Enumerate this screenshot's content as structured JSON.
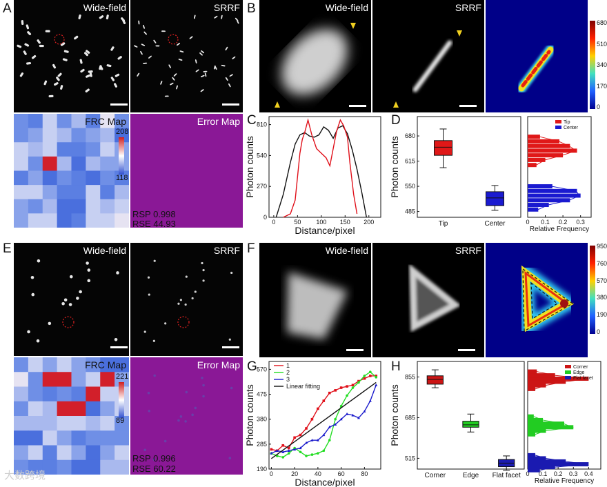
{
  "panel_letters": {
    "A": "A",
    "B": "B",
    "C": "C",
    "D": "D",
    "E": "E",
    "F": "F",
    "G": "G",
    "H": "H"
  },
  "titles": {
    "widefield": "Wide-field",
    "srrf": "SRRF",
    "frc": "FRC Map",
    "error": "Error Map"
  },
  "panelA": {
    "frc_max": "208",
    "frc_min": "118",
    "rsp": "RSP 0.998",
    "rse": "RSE 44.93"
  },
  "panelE": {
    "frc_max": "221",
    "frc_min": "89",
    "rsp": "RSP 0.996",
    "rse": "RSE 60.22"
  },
  "colorbar_B": [
    "680",
    "510",
    "340",
    "170",
    "0"
  ],
  "colorbar_F": [
    "950",
    "760",
    "570",
    "380",
    "190",
    "0"
  ],
  "watermark": "大数跨境",
  "colors": {
    "red": "#e0101a",
    "black": "#111111",
    "green": "#22dd22",
    "blue": "#1a1acc",
    "tip": "#e01818",
    "center": "#1a1ad0",
    "corner": "#cc1515",
    "edge": "#22cc22",
    "flat": "#1a1ab0"
  },
  "chart_data": [
    {
      "id": "C",
      "type": "line",
      "xlabel": "Distance/pixel",
      "ylabel": "Photon counts",
      "xlim": [
        -10,
        225
      ],
      "ylim": [
        0,
        880
      ],
      "xticks": [
        0,
        50,
        100,
        150,
        200
      ],
      "yticks": [
        0,
        270,
        540,
        810
      ],
      "series": [
        {
          "name": "Wide-field",
          "color": "#111111",
          "x": [
            5,
            20,
            35,
            45,
            55,
            65,
            75,
            85,
            95,
            105,
            115,
            125,
            135,
            145,
            155,
            165,
            175,
            185,
            195
          ],
          "y": [
            0,
            200,
            480,
            640,
            720,
            740,
            710,
            700,
            720,
            790,
            760,
            690,
            780,
            800,
            730,
            590,
            420,
            220,
            0
          ]
        },
        {
          "name": "SRRF",
          "color": "#e0101a",
          "x": [
            20,
            35,
            45,
            55,
            60,
            65,
            72,
            80,
            90,
            100,
            110,
            118,
            125,
            132,
            140,
            147,
            155,
            160,
            168,
            175
          ],
          "y": [
            0,
            30,
            150,
            560,
            680,
            740,
            850,
            720,
            600,
            560,
            520,
            450,
            600,
            750,
            850,
            800,
            700,
            480,
            200,
            30
          ]
        }
      ]
    },
    {
      "id": "D",
      "type": "box",
      "ylabel": "Photon counts",
      "ylim": [
        470,
        730
      ],
      "yticks": [
        485,
        550,
        615,
        680
      ],
      "categories": [
        "Tip",
        "Center"
      ],
      "boxes": [
        {
          "name": "Tip",
          "whisker_low": 598,
          "q1": 630,
          "median": 651,
          "q3": 668,
          "whisker_high": 698
        },
        {
          "name": "Center",
          "whisker_low": 488,
          "q1": 500,
          "median": 520,
          "q3": 536,
          "whisker_high": 552
        }
      ],
      "hist": {
        "xlabel": "Relative Frequency",
        "xlim": [
          0,
          0.36
        ],
        "xticks": [
          0,
          0.1,
          0.2,
          0.3
        ],
        "xticklabels": [
          "0",
          "0.1",
          "0.2",
          "0.3"
        ],
        "legend": [
          "Tip",
          "Center"
        ],
        "tip_bins": [
          [
            605,
            0.05
          ],
          [
            618,
            0.1
          ],
          [
            630,
            0.2
          ],
          [
            642,
            0.28
          ],
          [
            654,
            0.24
          ],
          [
            666,
            0.18
          ],
          [
            678,
            0.07
          ]
        ],
        "center_bins": [
          [
            490,
            0.06
          ],
          [
            502,
            0.12
          ],
          [
            514,
            0.24
          ],
          [
            526,
            0.3
          ],
          [
            538,
            0.28
          ],
          [
            550,
            0.14
          ]
        ]
      }
    },
    {
      "id": "G",
      "type": "line",
      "xlabel": "Distance/pixel",
      "ylabel": "Photon counts",
      "xlim": [
        -2,
        94
      ],
      "ylim": [
        190,
        600
      ],
      "xticks": [
        0,
        20,
        40,
        60,
        80
      ],
      "yticks": [
        190,
        285,
        380,
        475,
        570
      ],
      "legend": [
        "1",
        "2",
        "3",
        "Linear fitting"
      ],
      "series": [
        {
          "name": "1",
          "color": "#e0101a",
          "x": [
            0,
            5,
            10,
            15,
            20,
            25,
            30,
            35,
            40,
            45,
            50,
            55,
            60,
            65,
            70,
            75,
            80,
            85,
            90
          ],
          "y": [
            265,
            260,
            280,
            270,
            310,
            320,
            345,
            380,
            420,
            450,
            480,
            490,
            500,
            505,
            510,
            525,
            535,
            545,
            545
          ]
        },
        {
          "name": "2",
          "color": "#22dd22",
          "x": [
            0,
            5,
            10,
            15,
            20,
            25,
            30,
            35,
            40,
            45,
            50,
            55,
            60,
            65,
            70,
            75,
            80,
            85,
            90
          ],
          "y": [
            250,
            240,
            235,
            250,
            270,
            255,
            240,
            245,
            250,
            260,
            300,
            380,
            430,
            470,
            500,
            520,
            545,
            560,
            540
          ]
        },
        {
          "name": "3",
          "color": "#1a1acc",
          "x": [
            0,
            5,
            10,
            15,
            20,
            25,
            30,
            35,
            40,
            45,
            50,
            55,
            60,
            65,
            70,
            75,
            80,
            85,
            90
          ],
          "y": [
            250,
            260,
            255,
            260,
            265,
            270,
            290,
            300,
            300,
            320,
            350,
            360,
            380,
            400,
            395,
            385,
            410,
            450,
            510
          ]
        },
        {
          "name": "Linear fitting",
          "color": "#111111",
          "x": [
            0,
            90
          ],
          "y": [
            230,
            520
          ]
        }
      ]
    },
    {
      "id": "H",
      "type": "box",
      "ylabel": "Photon counts",
      "ylim": [
        470,
        920
      ],
      "yticks": [
        515,
        685,
        855
      ],
      "categories": [
        "Corner",
        "Edge",
        "Flat facet"
      ],
      "boxes": [
        {
          "name": "Corner",
          "whisker_low": 810,
          "q1": 825,
          "median": 845,
          "q3": 860,
          "whisker_high": 885
        },
        {
          "name": "Edge",
          "whisker_low": 625,
          "q1": 645,
          "median": 655,
          "q3": 670,
          "whisker_high": 700
        },
        {
          "name": "Flat facet",
          "whisker_low": 465,
          "q1": 480,
          "median": 495,
          "q3": 510,
          "whisker_high": 525
        }
      ],
      "hist": {
        "xlabel": "Relative Frequency",
        "xlim": [
          0,
          0.48
        ],
        "xticks": [
          0,
          0.1,
          0.2,
          0.3,
          0.4
        ],
        "xticklabels": [
          "0",
          "0.1",
          "0.2",
          "0.3",
          "0.4"
        ],
        "legend": [
          "Corner",
          "Edge",
          "Flat facet"
        ],
        "corner_bins": [
          [
            805,
            0.05
          ],
          [
            820,
            0.12
          ],
          [
            835,
            0.25
          ],
          [
            848,
            0.4
          ],
          [
            862,
            0.18
          ],
          [
            878,
            0.06
          ]
        ],
        "edge_bins": [
          [
            615,
            0.05
          ],
          [
            630,
            0.12
          ],
          [
            645,
            0.3
          ],
          [
            660,
            0.24
          ],
          [
            675,
            0.1
          ],
          [
            690,
            0.04
          ]
        ],
        "flat_bins": [
          [
            465,
            0.08
          ],
          [
            478,
            0.18
          ],
          [
            490,
            0.4
          ],
          [
            502,
            0.25
          ],
          [
            515,
            0.12
          ],
          [
            528,
            0.05
          ]
        ]
      }
    }
  ]
}
